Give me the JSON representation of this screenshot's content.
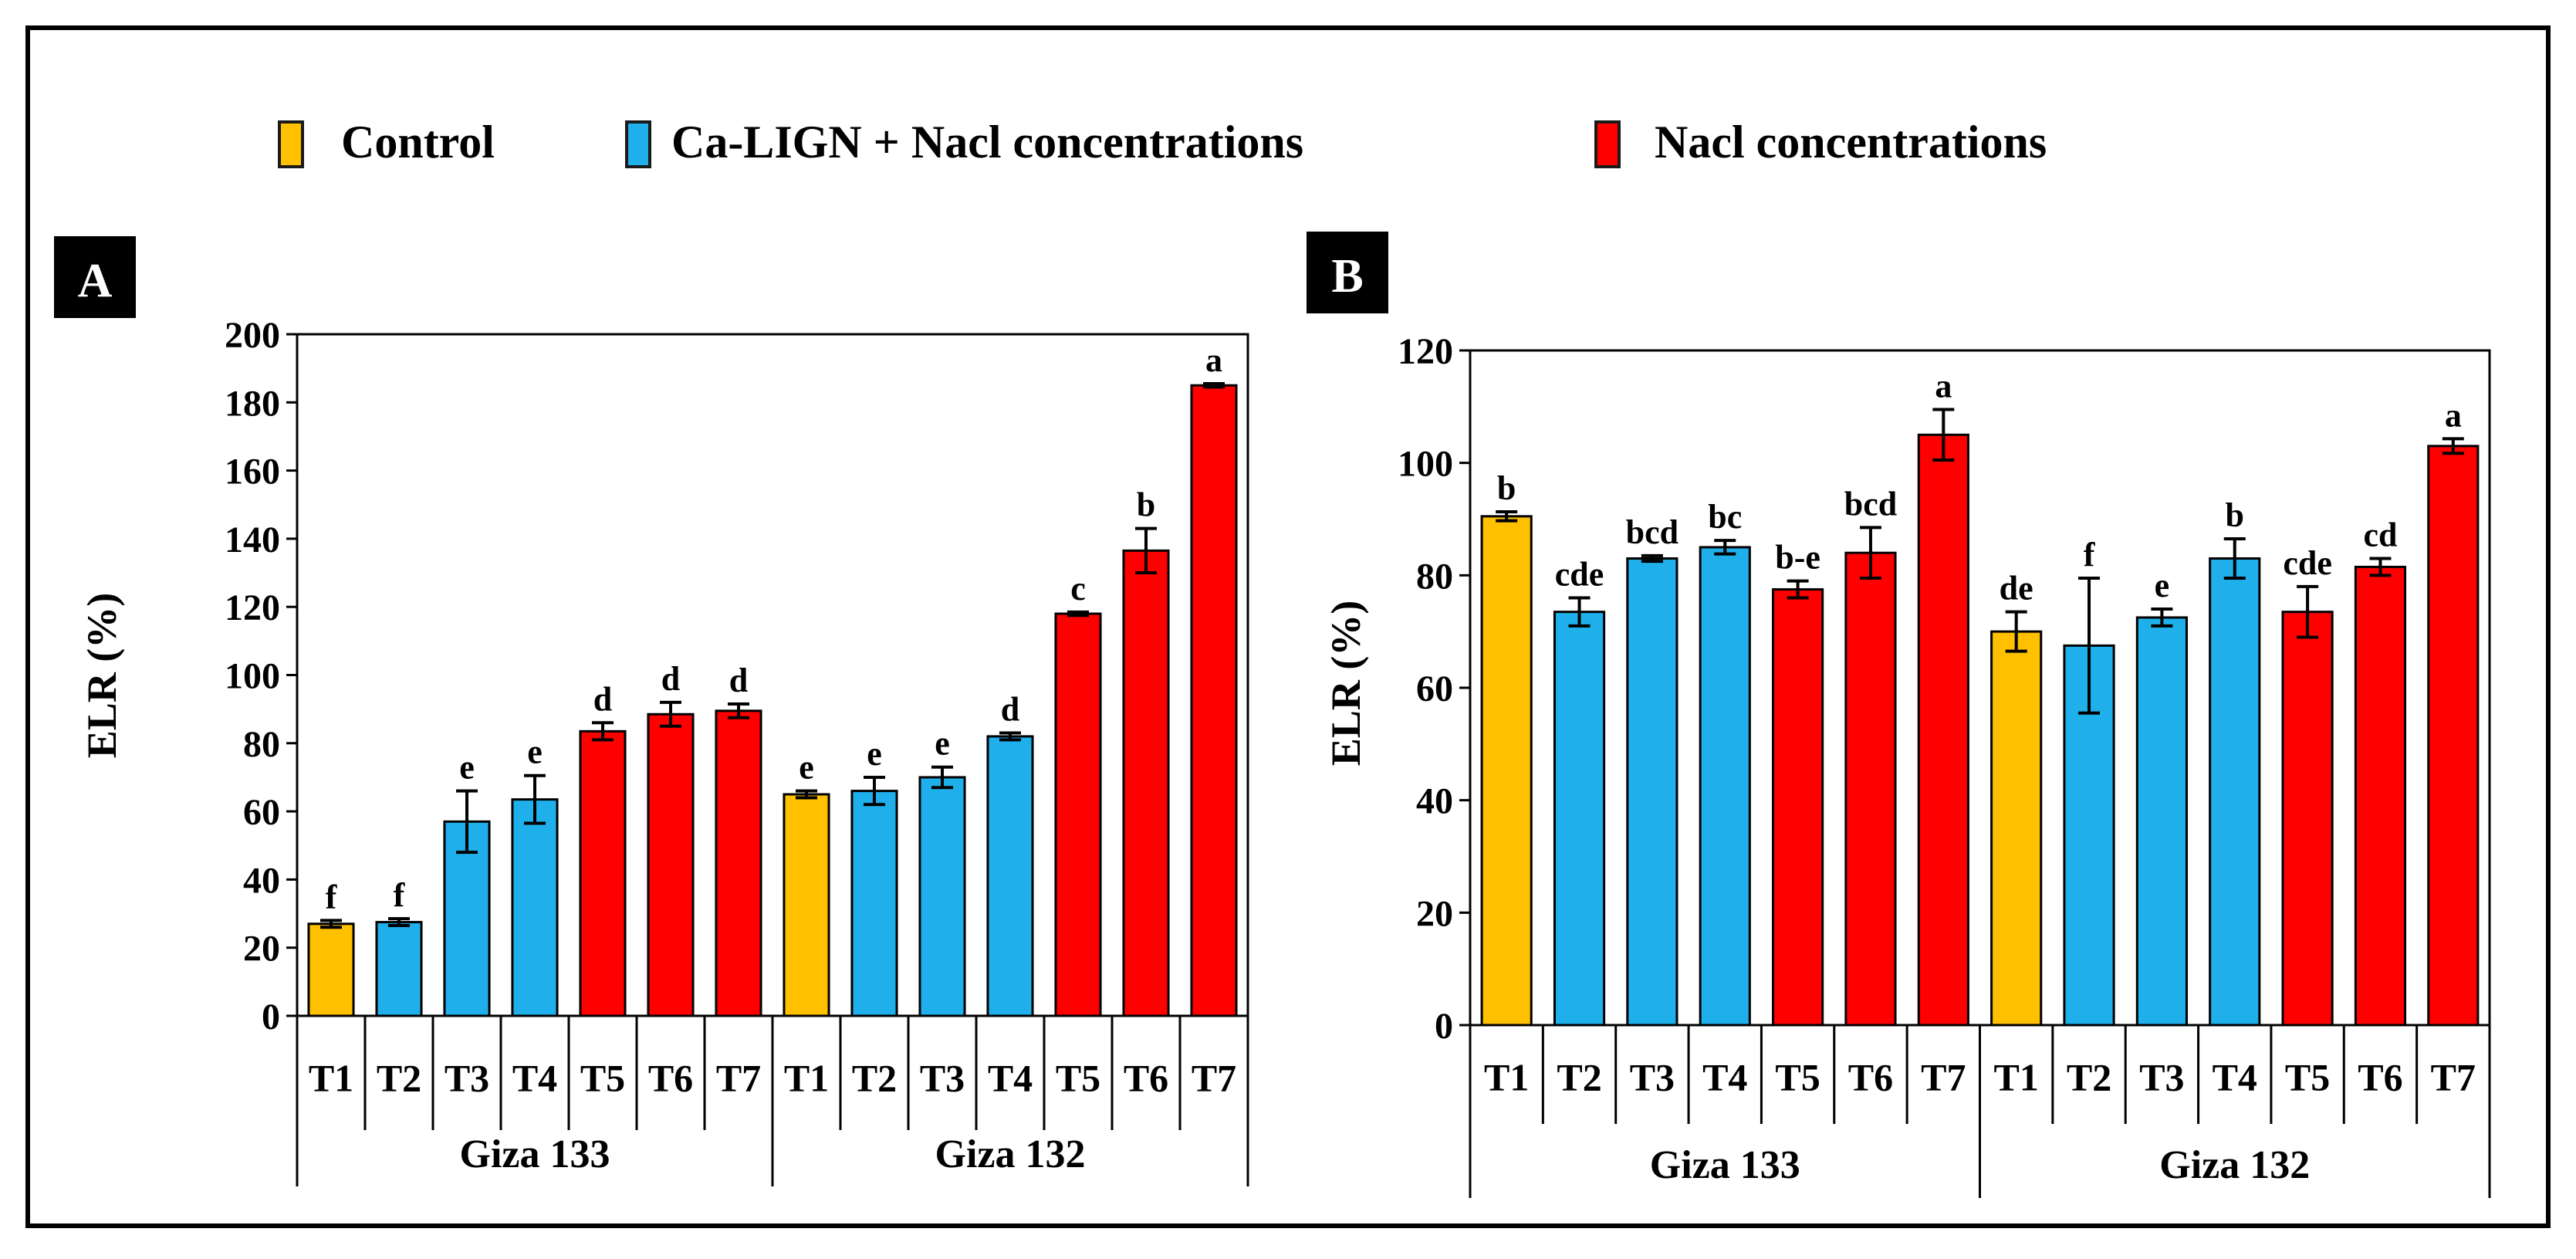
{
  "legend": {
    "items": [
      {
        "label": "Control",
        "color": "#FFC000"
      },
      {
        "label": "Ca-LIGN + Nacl concentrations",
        "color": "#1FB0EC"
      },
      {
        "label": "Nacl concentrations",
        "color": "#FF0000"
      }
    ]
  },
  "chart_data": [
    {
      "type": "bar",
      "panel_label": "A",
      "ylabel": "ELR (%)",
      "ylim": [
        0,
        200
      ],
      "yticks": [
        "0",
        "20",
        "40",
        "60",
        "80",
        "100",
        "120",
        "140",
        "160",
        "180",
        "200"
      ],
      "groups": [
        {
          "name": "Giza 133",
          "categories": [
            "T1",
            "T2",
            "T3",
            "T4",
            "T5",
            "T6",
            "T7"
          ]
        },
        {
          "name": "Giza 132",
          "categories": [
            "T1",
            "T2",
            "T3",
            "T4",
            "T5",
            "T6",
            "T7"
          ]
        }
      ],
      "values": [
        27,
        27.5,
        57,
        63.5,
        83.5,
        88.5,
        89.5,
        65,
        66,
        70,
        82,
        118,
        136.5,
        185
      ],
      "errors": [
        1,
        1,
        9,
        7,
        2.5,
        3.5,
        2,
        1,
        4,
        3,
        1,
        0.5,
        6.5,
        0.5
      ],
      "letters": [
        "f",
        "f",
        "e",
        "e",
        "d",
        "d",
        "d",
        "e",
        "e",
        "e",
        "d",
        "c",
        "b",
        "a"
      ],
      "series_type": [
        "control",
        "calign",
        "calign",
        "calign",
        "nacl",
        "nacl",
        "nacl",
        "control",
        "calign",
        "calign",
        "calign",
        "nacl",
        "nacl",
        "nacl"
      ]
    },
    {
      "type": "bar",
      "panel_label": "B",
      "ylabel": "ELR (%)",
      "ylim": [
        0,
        120
      ],
      "yticks": [
        "0",
        "20",
        "40",
        "60",
        "80",
        "100",
        "120"
      ],
      "groups": [
        {
          "name": "Giza 133",
          "categories": [
            "T1",
            "T2",
            "T3",
            "T4",
            "T5",
            "T6",
            "T7"
          ]
        },
        {
          "name": "Giza 132",
          "categories": [
            "T1",
            "T2",
            "T3",
            "T4",
            "T5",
            "T6",
            "T7"
          ]
        }
      ],
      "values": [
        90.5,
        73.5,
        83,
        85,
        77.5,
        84,
        105,
        70,
        67.5,
        72.5,
        83,
        73.5,
        81.5,
        103
      ],
      "errors": [
        0.8,
        2.5,
        0.5,
        1.2,
        1.5,
        4.5,
        4.5,
        3.5,
        12,
        1.5,
        3.5,
        4.5,
        1.5,
        1.3
      ],
      "letters": [
        "b",
        "cde",
        "bcd",
        "bc",
        "b-e",
        "bcd",
        "a",
        "de",
        "f",
        "e",
        "b",
        "cde",
        "cd",
        "a"
      ],
      "series_type": [
        "control",
        "calign",
        "calign",
        "calign",
        "nacl",
        "nacl",
        "nacl",
        "control",
        "calign",
        "calign",
        "calign",
        "nacl",
        "nacl",
        "nacl"
      ]
    }
  ],
  "colors": {
    "control": "#FFC000",
    "calign": "#1FB0EC",
    "nacl": "#FF0000"
  }
}
